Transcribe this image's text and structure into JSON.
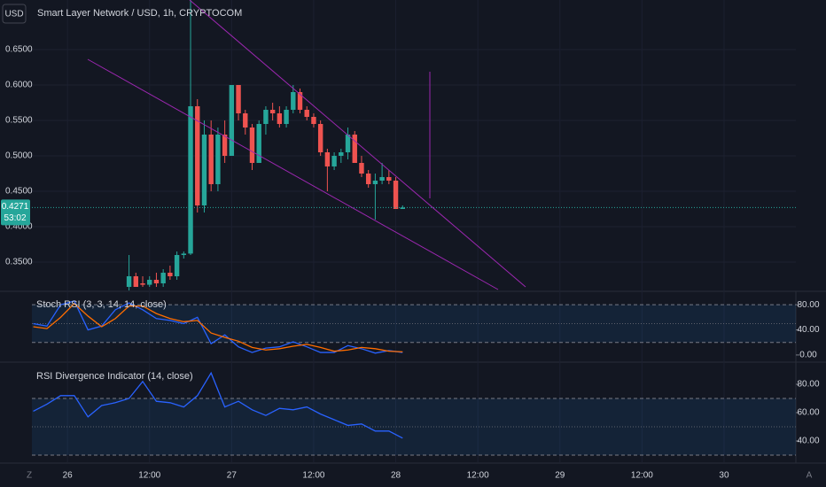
{
  "chart_data": [
    {
      "type": "candlestick",
      "title": "Smart Layer Network / USD, 1h, CRYPTOCOM",
      "currency": "USD",
      "x": [
        9,
        10,
        11,
        12,
        13,
        14,
        15,
        16,
        17,
        18,
        19,
        20,
        21,
        22,
        23,
        24,
        25,
        26,
        27,
        28,
        29,
        30,
        31,
        32,
        33,
        34,
        35,
        36,
        37,
        38,
        39,
        40,
        41,
        42,
        43,
        44,
        45,
        46,
        47,
        48,
        49
      ],
      "open": [
        0.315,
        0.33,
        0.32,
        0.318,
        0.325,
        0.32,
        0.335,
        0.33,
        0.36,
        0.362,
        0.57,
        0.43,
        0.53,
        0.46,
        0.53,
        0.5,
        0.6,
        0.56,
        0.54,
        0.49,
        0.545,
        0.565,
        0.56,
        0.545,
        0.565,
        0.59,
        0.565,
        0.555,
        0.545,
        0.505,
        0.485,
        0.5,
        0.505,
        0.53,
        0.49,
        0.475,
        0.46,
        0.465,
        0.47,
        0.465,
        0.425
      ],
      "high": [
        0.36,
        0.335,
        0.33,
        0.33,
        0.335,
        0.34,
        0.345,
        0.365,
        0.365,
        0.72,
        0.58,
        0.55,
        0.55,
        0.54,
        0.55,
        0.6,
        0.6,
        0.565,
        0.545,
        0.55,
        0.57,
        0.575,
        0.57,
        0.57,
        0.6,
        0.595,
        0.57,
        0.56,
        0.55,
        0.51,
        0.505,
        0.51,
        0.54,
        0.535,
        0.5,
        0.48,
        0.475,
        0.49,
        0.48,
        0.47,
        0.43
      ],
      "low": [
        0.31,
        0.315,
        0.315,
        0.315,
        0.315,
        0.315,
        0.325,
        0.325,
        0.355,
        0.36,
        0.42,
        0.42,
        0.45,
        0.45,
        0.49,
        0.5,
        0.55,
        0.53,
        0.48,
        0.49,
        0.53,
        0.55,
        0.54,
        0.54,
        0.56,
        0.56,
        0.55,
        0.54,
        0.5,
        0.45,
        0.48,
        0.49,
        0.495,
        0.49,
        0.47,
        0.455,
        0.41,
        0.46,
        0.46,
        0.425,
        0.425
      ],
      "close": [
        0.33,
        0.315,
        0.318,
        0.325,
        0.32,
        0.335,
        0.33,
        0.36,
        0.362,
        0.57,
        0.43,
        0.53,
        0.46,
        0.53,
        0.5,
        0.6,
        0.56,
        0.54,
        0.49,
        0.545,
        0.565,
        0.56,
        0.545,
        0.565,
        0.59,
        0.565,
        0.555,
        0.545,
        0.505,
        0.485,
        0.5,
        0.505,
        0.53,
        0.49,
        0.475,
        0.46,
        0.465,
        0.47,
        0.465,
        0.425,
        0.4271
      ],
      "up_color": "#26a69a",
      "down_color": "#ef5350",
      "last_price": 0.4271,
      "countdown": "53:02",
      "ylim": [
        0.31,
        0.72
      ],
      "yticks": [
        {
          "value": 0.35,
          "label": "0.3500"
        },
        {
          "value": 0.4,
          "label": "0.4000"
        },
        {
          "value": 0.45,
          "label": "0.4500"
        },
        {
          "value": 0.5,
          "label": "0.5000"
        },
        {
          "value": 0.55,
          "label": "0.5500"
        },
        {
          "value": 0.6,
          "label": "0.6000"
        },
        {
          "value": 0.65,
          "label": "0.6500"
        }
      ],
      "xlim": [
        -5.2,
        106.5
      ],
      "xticks": [
        {
          "value": 0,
          "label": "26"
        },
        {
          "value": 12,
          "label": "12:00"
        },
        {
          "value": 24,
          "label": "27"
        },
        {
          "value": 36,
          "label": "12:00"
        },
        {
          "value": 48,
          "label": "28"
        },
        {
          "value": 60,
          "label": "12:00"
        },
        {
          "value": 72,
          "label": "29"
        },
        {
          "value": 84,
          "label": "12:00"
        },
        {
          "value": 96,
          "label": "30"
        }
      ]
    },
    {
      "type": "line",
      "title": "Stoch RSI (3, 3, 14, 14, close)",
      "x": [
        -5,
        -3,
        -1,
        1,
        3,
        5,
        7,
        9,
        11,
        13,
        15,
        17,
        19,
        21,
        23,
        25,
        27,
        29,
        31,
        33,
        35,
        37,
        39,
        41,
        43,
        45,
        47,
        49
      ],
      "series": [
        {
          "color": "#2962ff",
          "values": [
            50,
            46,
            80,
            86,
            40,
            46,
            72,
            83,
            72,
            58,
            55,
            50,
            60,
            18,
            32,
            13,
            4,
            11,
            13,
            21,
            13,
            4,
            4,
            15,
            10,
            3,
            7,
            4
          ]
        },
        {
          "color": "#ff6d00",
          "values": [
            45,
            42,
            60,
            82,
            62,
            45,
            58,
            78,
            78,
            66,
            58,
            53,
            55,
            35,
            28,
            22,
            12,
            8,
            10,
            14,
            17,
            12,
            6,
            8,
            12,
            10,
            6,
            5
          ]
        }
      ],
      "bands": [
        20,
        80
      ],
      "middle": 50,
      "ylim": [
        -10,
        100
      ],
      "yticks": [
        {
          "value": 0,
          "label": "0.00"
        },
        {
          "value": 40,
          "label": "40.00"
        },
        {
          "value": 80,
          "label": "80.00"
        }
      ]
    },
    {
      "type": "line",
      "title": "RSI Divergence Indicator (14, close)",
      "x": [
        -5,
        -3,
        -1,
        1,
        3,
        5,
        7,
        9,
        11,
        13,
        15,
        17,
        19,
        21,
        23,
        25,
        27,
        29,
        31,
        33,
        35,
        37,
        39,
        41,
        43,
        45,
        47,
        49
      ],
      "series": [
        {
          "color": "#2962ff",
          "values": [
            61,
            66,
            72,
            72,
            57,
            65,
            67,
            70,
            82,
            68,
            67,
            64,
            72,
            88,
            64,
            68,
            62,
            58,
            63,
            62,
            64,
            59,
            55,
            51,
            52,
            47,
            47,
            42
          ]
        }
      ],
      "bands": [
        30,
        70
      ],
      "middle": 50,
      "ylim": [
        25,
        95
      ],
      "yticks": [
        {
          "value": 40,
          "label": "40.00"
        },
        {
          "value": 60,
          "label": "60.00"
        },
        {
          "value": 80,
          "label": "80.00"
        }
      ]
    }
  ],
  "ui": {
    "left_corner": "Z",
    "right_corner": "A"
  }
}
